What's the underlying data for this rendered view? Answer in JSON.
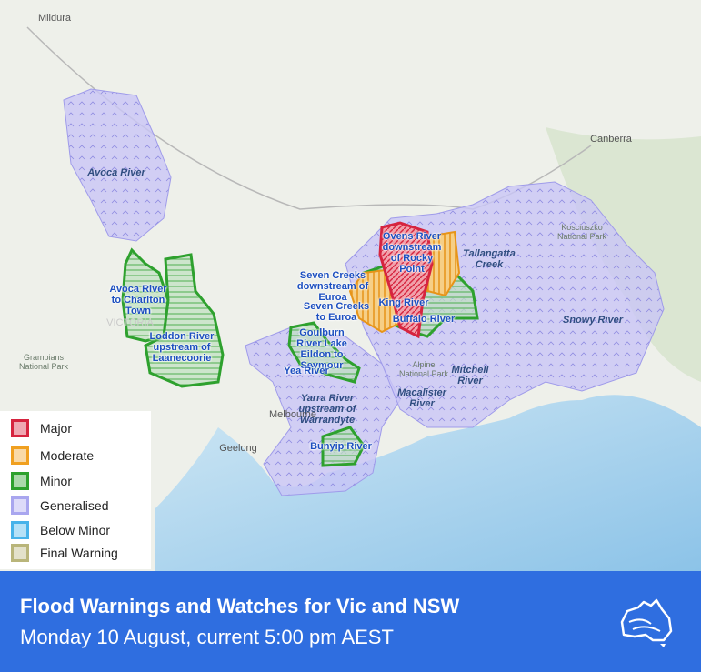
{
  "banner": {
    "title": "Flood Warnings and Watches for Vic and NSW",
    "subtitle": "Monday 10 August, current 5:00 pm AEST"
  },
  "legend": [
    {
      "label": "Major",
      "color": "#d6243f"
    },
    {
      "label": "Moderate",
      "color": "#f0a020"
    },
    {
      "label": "Minor",
      "color": "#2ea12e"
    },
    {
      "label": "Generalised",
      "color": "#a9a6ef"
    },
    {
      "label": "Below Minor",
      "color": "#47b3ea"
    },
    {
      "label": "Final Warning",
      "color": "#b9b57a"
    }
  ],
  "places": [
    "Mildura",
    "Canberra",
    "Geelong",
    "Melbourne",
    "VICTORIA",
    "Grampians National Park",
    "Alpine National Park",
    "Kosciuszko National Park"
  ],
  "generalised_areas": [
    "Avoca River",
    "Yarra River upstream of Warrandyte",
    "Tallangatta Creek",
    "Mitchell River",
    "Macalister River",
    "Snowy River"
  ],
  "warning_areas": [
    "Avoca River to Charlton Town",
    "Loddon River upstream of Laanecoorie",
    "Seven Creeks downstream of Euroa",
    "Seven Creeks to Euroa",
    "Goulburn River Lake Eildon to Seymour",
    "Yea River",
    "Bunyip River",
    "Ovens River downstream of Rocky Point",
    "King River",
    "Buffalo River"
  ]
}
